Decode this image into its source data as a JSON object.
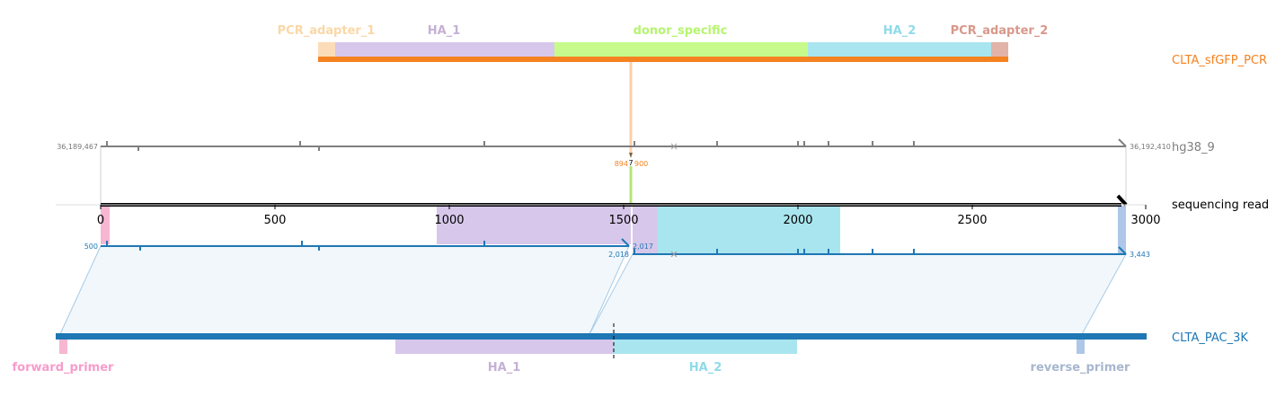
{
  "colors": {
    "pcr_adapter_1": "#fbdcb8",
    "ha_1": "#d7c7ea",
    "donor_specific": "#c6fb8c",
    "ha_2": "#a9e5ee",
    "pcr_adapter_2": "#e2b3a8",
    "donor_bar": "#f58220",
    "ref_line": "#7f7f7f",
    "read_line": "#000000",
    "plasmid": "#1f77b4",
    "forward_primer": "#f7b6d2",
    "reverse_primer": "#aec7e8",
    "ha_1_text": "#c5b0d5",
    "ha_2_text": "#8fdbe8",
    "pcr_adapter_1_text": "#fbd7a6",
    "pcr_adapter_2_text": "#d8988b",
    "donor_specific_text": "#b5f56e",
    "forward_primer_text": "#f79ccb",
    "reverse_primer_text": "#a7b7cf",
    "small_text": "#777777",
    "blue_text": "#1f77b4",
    "orange_text": "#f58220"
  },
  "labels": {
    "pcr_adapter_1": "PCR_adapter_1",
    "ha_1_top": "HA_1",
    "donor_specific": "donor_specific",
    "ha_2_top": "HA_2",
    "pcr_adapter_2": "PCR_adapter_2",
    "donor_name": "CLTA_sfGFP_PCR",
    "ref_name": "hg38_9",
    "read_name": "sequencing read",
    "plasmid_name": "CLTA_PAC_3K",
    "forward_primer": "forward_primer",
    "ha_1_bottom": "HA_1",
    "ha_2_bottom": "HA_2",
    "reverse_primer": "reverse_primer",
    "ref_start": "36,189,467",
    "ref_end": "36,192,410",
    "ins_marker": "7",
    "ins_left": "894",
    "ins_right": "900",
    "plasmid_start": "500",
    "plasmid_mid_left": "2,018",
    "plasmid_mid_right": "2,017",
    "plasmid_end": "3,443"
  },
  "axis": {
    "ticks": [
      "0",
      "500",
      "1000",
      "1500",
      "2000",
      "2500",
      "3000"
    ]
  }
}
